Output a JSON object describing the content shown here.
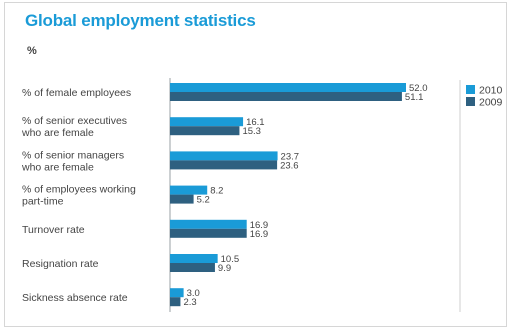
{
  "chart_data": {
    "type": "bar",
    "orientation": "horizontal",
    "title": "Global employment statistics",
    "unit": "%",
    "categories": [
      [
        "% of female employees"
      ],
      [
        "% of senior executives",
        "who are female"
      ],
      [
        "% of senior managers",
        "who are female"
      ],
      [
        "% of employees working",
        "part-time"
      ],
      [
        "Turnover rate"
      ],
      [
        "Resignation rate"
      ],
      [
        "Sickness absence rate"
      ]
    ],
    "series": [
      {
        "name": "2010",
        "color": "#1a9bd7",
        "values": [
          52.0,
          16.1,
          23.7,
          8.2,
          16.9,
          10.5,
          3.0
        ]
      },
      {
        "name": "2009",
        "color": "#2e6080",
        "values": [
          51.1,
          15.3,
          23.6,
          5.2,
          16.9,
          9.9,
          2.3
        ]
      }
    ],
    "value_labels": [
      [
        "52.0",
        "16.1",
        "23.7",
        "8.2",
        "16.9",
        "10.5",
        "3.0"
      ],
      [
        "51.1",
        "15.3",
        "23.6",
        "5.2",
        "16.9",
        "9.9",
        "2.3"
      ]
    ],
    "xlim": [
      0,
      55
    ],
    "legend_position": "right",
    "grid": false
  }
}
